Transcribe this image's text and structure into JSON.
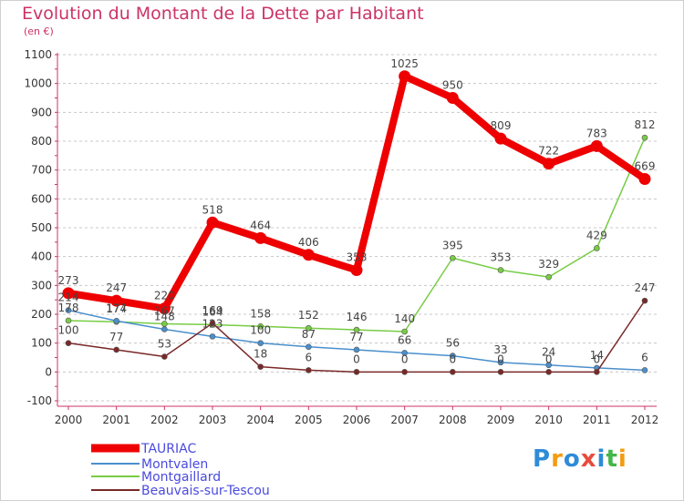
{
  "header": {
    "title": "Evolution du Montant de la Dette par Habitant",
    "subtitle": "(en €)"
  },
  "logo": {
    "text": "Proxiti",
    "colors": [
      "#2e8bd8",
      "#f39c12",
      "#2e8bd8",
      "#e84c3d",
      "#2e8bd8",
      "#43b649",
      "#f39c12"
    ]
  },
  "chart_data": {
    "type": "line",
    "title": "Evolution du Montant de la Dette par Habitant",
    "subtitle": "(en €)",
    "xlabel": "",
    "ylabel": "",
    "x": [
      "2000",
      "2001",
      "2002",
      "2003",
      "2004",
      "2005",
      "2006",
      "2007",
      "2008",
      "2009",
      "2010",
      "2011",
      "2012"
    ],
    "ylim": [
      -100,
      1100
    ],
    "yticks": [
      -100,
      0,
      100,
      200,
      300,
      400,
      500,
      600,
      700,
      800,
      900,
      1000,
      1100
    ],
    "grid": "horizontal",
    "legend_position": "bottom-left",
    "series": [
      {
        "name": "Montgaillard",
        "color": "#77cc44",
        "values": [
          178,
          174,
          167,
          164,
          158,
          152,
          146,
          140,
          395,
          353,
          329,
          429,
          812
        ],
        "labels": [
          "178",
          "174",
          "167",
          "164",
          "158",
          "152",
          "146",
          "140",
          "395",
          "353",
          "329",
          "429",
          "812"
        ]
      },
      {
        "name": "Montvalen",
        "color": "#4a8fcc",
        "values": [
          214,
          177,
          148,
          123,
          100,
          87,
          77,
          66,
          56,
          33,
          24,
          14,
          6
        ],
        "labels": [
          "214",
          "177",
          "148",
          "123",
          "100",
          "87",
          "77",
          "66",
          "56",
          "33",
          "24",
          "14",
          "6"
        ]
      },
      {
        "name": "Beauvais-sur-Tescou",
        "color": "#7a2828",
        "values": [
          100,
          77,
          53,
          169,
          18,
          6,
          0,
          0,
          0,
          0,
          0,
          0,
          247
        ],
        "labels": [
          "100",
          "77",
          "53",
          "169",
          "18",
          "6",
          "0",
          "0",
          "0",
          "0",
          "0",
          "0",
          "247"
        ]
      },
      {
        "name": "TAURIAC",
        "color": "#ee0000",
        "values": [
          273,
          247,
          220,
          518,
          464,
          406,
          353,
          1025,
          950,
          809,
          722,
          783,
          669
        ],
        "labels": [
          "273",
          "247",
          "220",
          "518",
          "464",
          "406",
          "353",
          "1025",
          "950",
          "809",
          "722",
          "783",
          "669"
        ]
      }
    ],
    "legend_order": [
      "TAURIAC",
      "Montvalen",
      "Montgaillard",
      "Beauvais-sur-Tescou"
    ]
  }
}
